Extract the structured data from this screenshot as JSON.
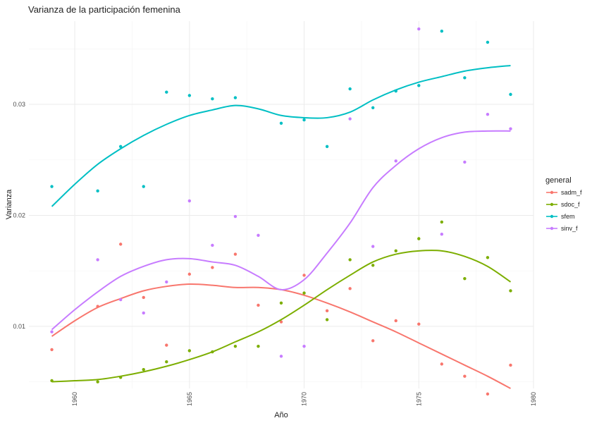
{
  "chart_data": {
    "type": "scatter",
    "title": "Varianza de la participación femenina",
    "xlabel": "Año",
    "ylabel": "Varianza",
    "xlim": [
      1958,
      1980
    ],
    "ylim": [
      0.0044,
      0.0375
    ],
    "x_ticks": [
      "1960",
      "1965",
      "1970",
      "1975",
      "1980"
    ],
    "y_ticks": [
      "0.01",
      "0.02",
      "0.03"
    ],
    "grid": true,
    "legend": {
      "title": "general",
      "position": "right"
    },
    "series": [
      {
        "name": "sadm_f",
        "color": "#F8766D",
        "points": [
          [
            1959,
            0.0079
          ],
          [
            1961,
            0.0118
          ],
          [
            1962,
            0.0174
          ],
          [
            1963,
            0.0126
          ],
          [
            1964,
            0.0083
          ],
          [
            1965,
            0.0147
          ],
          [
            1966,
            0.0153
          ],
          [
            1967,
            0.0165
          ],
          [
            1968,
            0.0119
          ],
          [
            1969,
            0.0104
          ],
          [
            1970,
            0.0146
          ],
          [
            1971,
            0.0114
          ],
          [
            1972,
            0.0134
          ],
          [
            1973,
            0.0087
          ],
          [
            1974,
            0.0105
          ],
          [
            1975,
            0.0102
          ],
          [
            1976,
            0.0066
          ],
          [
            1977,
            0.0055
          ],
          [
            1978,
            0.0039
          ],
          [
            1979,
            0.0065
          ]
        ],
        "smooth": [
          [
            1959,
            0.0091
          ],
          [
            1960,
            0.0105
          ],
          [
            1961,
            0.0117
          ],
          [
            1962,
            0.0125
          ],
          [
            1963,
            0.0132
          ],
          [
            1964,
            0.0136
          ],
          [
            1965,
            0.0138
          ],
          [
            1966,
            0.0137
          ],
          [
            1967,
            0.0135
          ],
          [
            1968,
            0.0135
          ],
          [
            1969,
            0.0133
          ],
          [
            1970,
            0.0128
          ],
          [
            1971,
            0.0121
          ],
          [
            1972,
            0.0113
          ],
          [
            1973,
            0.0104
          ],
          [
            1974,
            0.0095
          ],
          [
            1975,
            0.0085
          ],
          [
            1976,
            0.0075
          ],
          [
            1977,
            0.0065
          ],
          [
            1978,
            0.0055
          ],
          [
            1979,
            0.0044
          ]
        ]
      },
      {
        "name": "sdoc_f",
        "color": "#7CAE00",
        "points": [
          [
            1959,
            0.0051
          ],
          [
            1961,
            0.005
          ],
          [
            1962,
            0.0054
          ],
          [
            1963,
            0.0061
          ],
          [
            1964,
            0.0068
          ],
          [
            1965,
            0.0078
          ],
          [
            1966,
            0.0077
          ],
          [
            1967,
            0.0082
          ],
          [
            1968,
            0.0082
          ],
          [
            1969,
            0.0121
          ],
          [
            1970,
            0.013
          ],
          [
            1971,
            0.0106
          ],
          [
            1972,
            0.016
          ],
          [
            1973,
            0.0155
          ],
          [
            1974,
            0.0168
          ],
          [
            1975,
            0.0179
          ],
          [
            1976,
            0.0194
          ],
          [
            1977,
            0.0143
          ],
          [
            1978,
            0.0162
          ],
          [
            1979,
            0.0132
          ]
        ],
        "smooth": [
          [
            1959,
            0.005
          ],
          [
            1960,
            0.0051
          ],
          [
            1961,
            0.0052
          ],
          [
            1962,
            0.0055
          ],
          [
            1963,
            0.0059
          ],
          [
            1964,
            0.0064
          ],
          [
            1965,
            0.007
          ],
          [
            1966,
            0.0077
          ],
          [
            1967,
            0.0086
          ],
          [
            1968,
            0.0095
          ],
          [
            1969,
            0.0106
          ],
          [
            1970,
            0.0119
          ],
          [
            1971,
            0.0133
          ],
          [
            1972,
            0.0146
          ],
          [
            1973,
            0.0158
          ],
          [
            1974,
            0.0165
          ],
          [
            1975,
            0.0168
          ],
          [
            1976,
            0.0168
          ],
          [
            1977,
            0.0163
          ],
          [
            1978,
            0.0154
          ],
          [
            1979,
            0.014
          ]
        ]
      },
      {
        "name": "sfem",
        "color": "#00BFC4",
        "points": [
          [
            1959,
            0.0226
          ],
          [
            1961,
            0.0222
          ],
          [
            1962,
            0.0262
          ],
          [
            1963,
            0.0226
          ],
          [
            1964,
            0.0311
          ],
          [
            1965,
            0.0308
          ],
          [
            1966,
            0.0305
          ],
          [
            1967,
            0.0306
          ],
          [
            1969,
            0.0283
          ],
          [
            1970,
            0.0286
          ],
          [
            1971,
            0.0262
          ],
          [
            1972,
            0.0314
          ],
          [
            1973,
            0.0297
          ],
          [
            1974,
            0.0312
          ],
          [
            1975,
            0.0317
          ],
          [
            1976,
            0.0366
          ],
          [
            1977,
            0.0324
          ],
          [
            1978,
            0.0356
          ],
          [
            1979,
            0.0309
          ]
        ],
        "smooth": [
          [
            1959,
            0.0208
          ],
          [
            1960,
            0.0228
          ],
          [
            1961,
            0.0246
          ],
          [
            1962,
            0.026
          ],
          [
            1963,
            0.0272
          ],
          [
            1964,
            0.0282
          ],
          [
            1965,
            0.029
          ],
          [
            1966,
            0.0295
          ],
          [
            1967,
            0.0299
          ],
          [
            1968,
            0.0296
          ],
          [
            1969,
            0.029
          ],
          [
            1970,
            0.0288
          ],
          [
            1971,
            0.0288
          ],
          [
            1972,
            0.0293
          ],
          [
            1973,
            0.0304
          ],
          [
            1974,
            0.0313
          ],
          [
            1975,
            0.032
          ],
          [
            1976,
            0.0325
          ],
          [
            1977,
            0.033
          ],
          [
            1978,
            0.0333
          ],
          [
            1979,
            0.0335
          ]
        ]
      },
      {
        "name": "sinv_f",
        "color": "#C77CFF",
        "points": [
          [
            1959,
            0.0095
          ],
          [
            1961,
            0.016
          ],
          [
            1962,
            0.0124
          ],
          [
            1963,
            0.0112
          ],
          [
            1964,
            0.014
          ],
          [
            1965,
            0.0213
          ],
          [
            1966,
            0.0173
          ],
          [
            1967,
            0.0199
          ],
          [
            1968,
            0.0182
          ],
          [
            1969,
            0.0073
          ],
          [
            1970,
            0.0082
          ],
          [
            1972,
            0.0287
          ],
          [
            1973,
            0.0172
          ],
          [
            1974,
            0.0249
          ],
          [
            1975,
            0.0368
          ],
          [
            1976,
            0.0183
          ],
          [
            1977,
            0.0248
          ],
          [
            1978,
            0.0291
          ],
          [
            1979,
            0.0278
          ]
        ],
        "smooth": [
          [
            1959,
            0.0097
          ],
          [
            1960,
            0.0115
          ],
          [
            1961,
            0.0131
          ],
          [
            1962,
            0.0145
          ],
          [
            1963,
            0.0154
          ],
          [
            1964,
            0.016
          ],
          [
            1965,
            0.0161
          ],
          [
            1966,
            0.0158
          ],
          [
            1967,
            0.0155
          ],
          [
            1968,
            0.0145
          ],
          [
            1969,
            0.0133
          ],
          [
            1970,
            0.0142
          ],
          [
            1971,
            0.0166
          ],
          [
            1972,
            0.0193
          ],
          [
            1973,
            0.0225
          ],
          [
            1974,
            0.0245
          ],
          [
            1975,
            0.026
          ],
          [
            1976,
            0.027
          ],
          [
            1977,
            0.0275
          ],
          [
            1978,
            0.0276
          ],
          [
            1979,
            0.0276
          ]
        ]
      }
    ]
  }
}
